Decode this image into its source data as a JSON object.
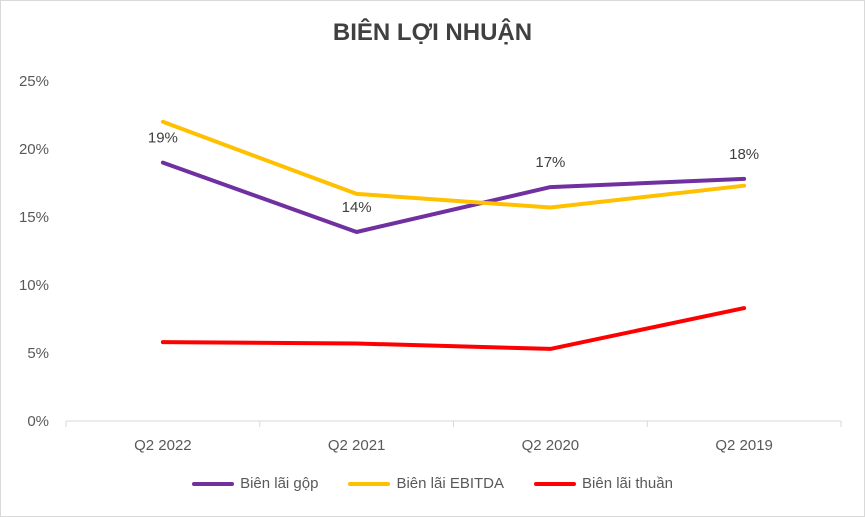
{
  "chart_data": {
    "type": "line",
    "title": "BIÊN LỢI NHUẬN",
    "categories": [
      "Q2 2022",
      "Q2 2021",
      "Q2 2020",
      "Q2 2019"
    ],
    "y_ticks": [
      "0%",
      "5%",
      "10%",
      "15%",
      "20%",
      "25%"
    ],
    "ylim": [
      0,
      25
    ],
    "grid": false,
    "legend_position": "bottom",
    "series": [
      {
        "name": "Biên lãi gộp",
        "color": "#7030a0",
        "values": [
          19.0,
          13.9,
          17.2,
          17.8
        ],
        "data_labels": [
          "19%",
          "14%",
          "17%",
          "18%"
        ]
      },
      {
        "name": "Biên lãi EBITDA",
        "color": "#ffc000",
        "values": [
          22.0,
          16.7,
          15.7,
          17.3
        ]
      },
      {
        "name": "Biên lãi thuần",
        "color": "#ff0000",
        "values": [
          5.8,
          5.7,
          5.3,
          8.3
        ]
      }
    ]
  }
}
